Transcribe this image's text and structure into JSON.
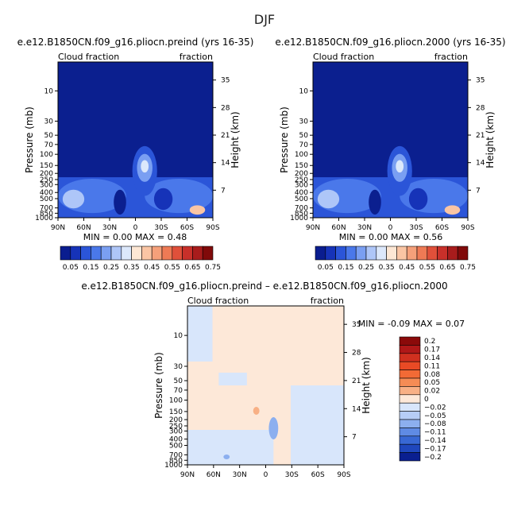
{
  "page_title": "DJF",
  "chart_data": [
    {
      "type": "heatmap",
      "title": "e.e12.B1850CN.f09_g16.pliocn.preind (yrs 16-35)",
      "left_subtitle": "Cloud fraction",
      "right_subtitle": "fraction",
      "xlabel": "",
      "ylabel": "Pressure (mb)",
      "ylabel_right": "Height (km)",
      "x_ticks": [
        "90N",
        "60N",
        "30N",
        "0",
        "30S",
        "60S",
        "90S"
      ],
      "y_ticks": [
        "10",
        "30",
        "50",
        "70",
        "100",
        "150",
        "200",
        "250",
        "300",
        "400",
        "500",
        "700",
        "850",
        "1000"
      ],
      "y_ticks_right": [
        "35",
        "28",
        "21",
        "14",
        "7"
      ],
      "min_max": "MIN =   0.00  MAX =  0.48",
      "min": 0.0,
      "max": 0.48,
      "colorbar_labels": [
        "0.05",
        "0.15",
        "0.25",
        "0.35",
        "0.45",
        "0.55",
        "0.65",
        "0.75"
      ],
      "colorbar_colors": [
        "#0a1d8f",
        "#1633b8",
        "#2b55d8",
        "#4a78ea",
        "#7a9ff2",
        "#aec6f8",
        "#dce8fb",
        "#fde7d4",
        "#fac5a4",
        "#f5a07a",
        "#ee7a55",
        "#e0503a",
        "#c8302a",
        "#a81c1c",
        "#800a0a"
      ]
    },
    {
      "type": "heatmap",
      "title": "e.e12.B1850CN.f09_g16.pliocn.2000 (yrs 16-35)",
      "left_subtitle": "Cloud fraction",
      "right_subtitle": "fraction",
      "xlabel": "",
      "ylabel": "Pressure (mb)",
      "ylabel_right": "Height (km)",
      "x_ticks": [
        "90N",
        "60N",
        "30N",
        "0",
        "30S",
        "60S",
        "90S"
      ],
      "y_ticks": [
        "10",
        "30",
        "50",
        "70",
        "100",
        "150",
        "200",
        "250",
        "300",
        "400",
        "500",
        "700",
        "850",
        "1000"
      ],
      "y_ticks_right": [
        "35",
        "28",
        "21",
        "14",
        "7"
      ],
      "min_max": "MIN =   0.00  MAX =  0.56",
      "min": 0.0,
      "max": 0.56,
      "colorbar_labels": [
        "0.05",
        "0.15",
        "0.25",
        "0.35",
        "0.45",
        "0.55",
        "0.65",
        "0.75"
      ],
      "colorbar_colors": [
        "#0a1d8f",
        "#1633b8",
        "#2b55d8",
        "#4a78ea",
        "#7a9ff2",
        "#aec6f8",
        "#dce8fb",
        "#fde7d4",
        "#fac5a4",
        "#f5a07a",
        "#ee7a55",
        "#e0503a",
        "#c8302a",
        "#a81c1c",
        "#800a0a"
      ]
    },
    {
      "type": "heatmap",
      "title": "e.e12.B1850CN.f09_g16.pliocn.preind – e.e12.B1850CN.f09_g16.pliocn.2000",
      "left_subtitle": "Cloud fraction",
      "right_subtitle": "fraction",
      "xlabel": "",
      "ylabel": "Pressure (mb)",
      "ylabel_right": "Height (km)",
      "x_ticks": [
        "90N",
        "60N",
        "30N",
        "0",
        "30S",
        "60S",
        "90S"
      ],
      "y_ticks": [
        "10",
        "30",
        "50",
        "70",
        "100",
        "150",
        "200",
        "250",
        "300",
        "400",
        "500",
        "700",
        "850",
        "1000"
      ],
      "y_ticks_right": [
        "35",
        "28",
        "21",
        "14",
        "7"
      ],
      "min_max": "MIN =  -0.09   MAX =   0.07",
      "min": -0.09,
      "max": 0.07,
      "colorbar_labels": [
        "0.2",
        "0.17",
        "0.14",
        "0.11",
        "0.08",
        "0.05",
        "0.02",
        "0",
        "−0.02",
        "−0.05",
        "−0.08",
        "−0.11",
        "−0.14",
        "−0.17",
        "−0.2"
      ],
      "colorbar_colors": [
        "#8b0a0a",
        "#b01818",
        "#d0301f",
        "#e84a25",
        "#f26a35",
        "#f58c55",
        "#f8b085",
        "#fde8d8",
        "#d8e6fb",
        "#b6cdf6",
        "#8cafef",
        "#5f8be4",
        "#3868d4",
        "#1f47bd",
        "#0a1f90"
      ]
    }
  ]
}
